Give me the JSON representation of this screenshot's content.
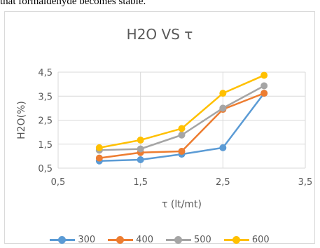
{
  "page": {
    "snippet": "that formaldehyde becomes stable."
  },
  "chart_data": {
    "type": "line",
    "title": "H2O VS τ",
    "xlabel": "τ  (lt/mt)",
    "ylabel": "H2O(%)",
    "xlim": [
      0.5,
      3.5
    ],
    "ylim": [
      0.5,
      4.5
    ],
    "xticks": [
      "0,5",
      "1,5",
      "2,5",
      "3,5"
    ],
    "xtick_values": [
      0.5,
      1.5,
      2.5,
      3.5
    ],
    "yticks": [
      "0,5",
      "1,5",
      "2,5",
      "3,5",
      "4,5"
    ],
    "ytick_values": [
      0.5,
      1.5,
      2.5,
      3.5,
      4.5
    ],
    "grid": true,
    "legend_position": "bottom",
    "x": [
      1,
      1.5,
      2,
      2.5,
      3
    ],
    "series": [
      {
        "name": "300",
        "color": "#5b9bd5",
        "values": [
          0.8,
          0.85,
          1.08,
          1.35,
          3.62
        ]
      },
      {
        "name": "400",
        "color": "#ed7d31",
        "values": [
          0.92,
          1.15,
          1.2,
          2.95,
          3.62
        ]
      },
      {
        "name": "500",
        "color": "#a5a5a5",
        "values": [
          1.25,
          1.3,
          1.88,
          3.0,
          3.93
        ]
      },
      {
        "name": "600",
        "color": "#ffc000",
        "values": [
          1.35,
          1.67,
          2.15,
          3.62,
          4.37
        ]
      }
    ]
  }
}
